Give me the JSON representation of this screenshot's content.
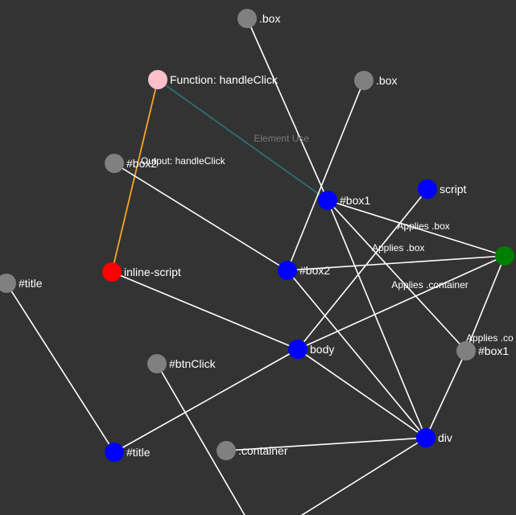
{
  "colors": {
    "background": "#333333",
    "edge_default": "#ffffff",
    "edge_function": "#2e6f6f",
    "edge_output": "#f5a623",
    "node_gray": "#808080",
    "node_blue": "#0000ff",
    "node_red": "#ff0000",
    "node_pink": "#ffc0cb",
    "node_green": "#007f00"
  },
  "nodes": [
    {
      "id": "box_top",
      "label": ".box",
      "color": "gray"
    },
    {
      "id": "fn",
      "label": "Function: handleClick",
      "color": "pink"
    },
    {
      "id": "box_mid",
      "label": ".box",
      "color": "gray"
    },
    {
      "id": "box2_gray",
      "label": "#box2",
      "color": "gray"
    },
    {
      "id": "box1_blue",
      "label": "#box1",
      "color": "blue"
    },
    {
      "id": "script",
      "label": "script",
      "color": "blue"
    },
    {
      "id": "style_green",
      "label": "",
      "color": "green"
    },
    {
      "id": "title_gray",
      "label": "#title",
      "color": "gray"
    },
    {
      "id": "inline",
      "label": "inline-script",
      "color": "red"
    },
    {
      "id": "box2_blue",
      "label": "#box2",
      "color": "blue"
    },
    {
      "id": "body",
      "label": "body",
      "color": "blue"
    },
    {
      "id": "box1_gray",
      "label": "#box1",
      "color": "gray"
    },
    {
      "id": "btn",
      "label": "#btnClick",
      "color": "gray"
    },
    {
      "id": "title_blue",
      "label": "#title",
      "color": "blue"
    },
    {
      "id": "container",
      "label": ".container",
      "color": "gray"
    },
    {
      "id": "div",
      "label": "div",
      "color": "blue"
    },
    {
      "id": "offscreen_a",
      "label": "",
      "color": "none"
    },
    {
      "id": "offscreen_b",
      "label": "",
      "color": "none"
    }
  ],
  "edges": [
    {
      "from": "fn",
      "to": "box1_blue",
      "label": "Element Use",
      "kind": "function"
    },
    {
      "from": "inline",
      "to": "fn",
      "label": "Output: handleClick",
      "kind": "output"
    },
    {
      "from": "box_top",
      "to": "box1_blue",
      "label": "",
      "kind": "default"
    },
    {
      "from": "box_mid",
      "to": "box2_blue",
      "label": "",
      "kind": "default"
    },
    {
      "from": "box2_gray",
      "to": "box2_blue",
      "label": "",
      "kind": "default"
    },
    {
      "from": "box1_blue",
      "to": "style_green",
      "label": "Applies .box",
      "kind": "default"
    },
    {
      "from": "box2_blue",
      "to": "style_green",
      "label": "Applies .box",
      "kind": "default"
    },
    {
      "from": "body",
      "to": "style_green",
      "label": "Applies .container",
      "kind": "default"
    },
    {
      "from": "box1_gray",
      "to": "style_green",
      "label": "Applies .co",
      "kind": "default"
    },
    {
      "from": "script",
      "to": "body",
      "label": "",
      "kind": "default"
    },
    {
      "from": "box1_blue",
      "to": "box1_gray",
      "label": "",
      "kind": "default"
    },
    {
      "from": "box1_blue",
      "to": "div",
      "label": "",
      "kind": "default"
    },
    {
      "from": "box2_blue",
      "to": "div",
      "label": "",
      "kind": "default"
    },
    {
      "from": "body",
      "to": "div",
      "label": "",
      "kind": "default"
    },
    {
      "from": "box1_gray",
      "to": "div",
      "label": "",
      "kind": "default"
    },
    {
      "from": "inline",
      "to": "body",
      "label": "",
      "kind": "default"
    },
    {
      "from": "body",
      "to": "title_blue",
      "label": "",
      "kind": "default"
    },
    {
      "from": "title_gray",
      "to": "title_blue",
      "label": "",
      "kind": "default"
    },
    {
      "from": "container",
      "to": "div",
      "label": "",
      "kind": "default"
    },
    {
      "from": "btn",
      "to": "offscreen_a",
      "label": "",
      "kind": "default"
    },
    {
      "from": "div",
      "to": "offscreen_b",
      "label": "",
      "kind": "default"
    }
  ]
}
